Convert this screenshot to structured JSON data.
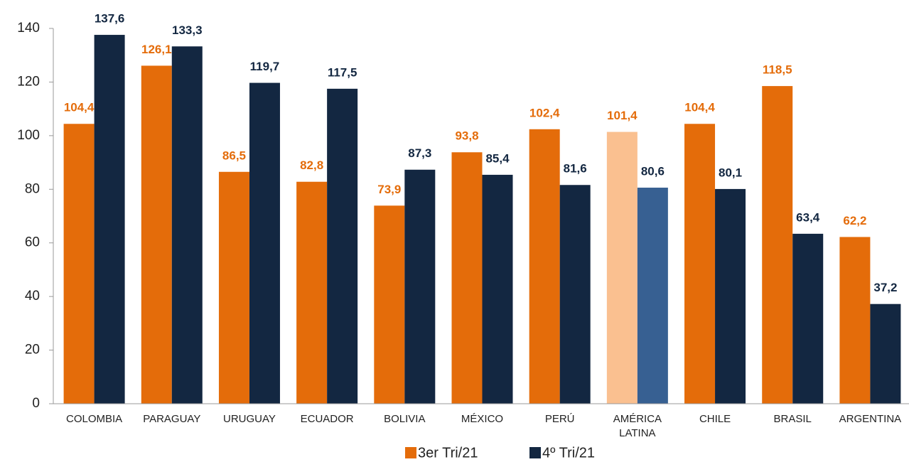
{
  "chart_data": {
    "type": "bar",
    "categories": [
      "COLOMBIA",
      "PARAGUAY",
      "URUGUAY",
      "ECUADOR",
      "BOLIVIA",
      "MÉXICO",
      "PERÚ",
      "AMÉRICA LATINA",
      "CHILE",
      "BRASIL",
      "ARGENTINA"
    ],
    "series": [
      {
        "name": "3er Tri/21",
        "color": "#e46c0a",
        "colors": [
          "#e46c0a",
          "#e46c0a",
          "#e46c0a",
          "#e46c0a",
          "#e46c0a",
          "#e46c0a",
          "#e46c0a",
          "#fac090",
          "#e46c0a",
          "#e46c0a",
          "#e46c0a"
        ],
        "values": [
          104.4,
          126.1,
          86.5,
          82.8,
          73.9,
          93.8,
          102.4,
          101.4,
          104.4,
          118.5,
          62.2
        ],
        "value_labels": [
          "104,4",
          "126,1",
          "86,5",
          "82,8",
          "73,9",
          "93,8",
          "102,4",
          "101,4",
          "104,4",
          "118,5",
          "62,2"
        ]
      },
      {
        "name": "4º Tri/21",
        "color": "#132741",
        "colors": [
          "#132741",
          "#132741",
          "#132741",
          "#132741",
          "#132741",
          "#132741",
          "#132741",
          "#376092",
          "#132741",
          "#132741",
          "#132741"
        ],
        "values": [
          137.6,
          133.3,
          119.7,
          117.5,
          87.3,
          85.4,
          81.6,
          80.6,
          80.1,
          63.4,
          37.2
        ],
        "value_labels": [
          "137,6",
          "133,3",
          "119,7",
          "117,5",
          "87,3",
          "85,4",
          "81,6",
          "80,6",
          "80,1",
          "63,4",
          "37,2"
        ]
      }
    ],
    "ylim": [
      0,
      140
    ],
    "yticks": [
      0,
      20,
      40,
      60,
      80,
      100,
      120,
      140
    ],
    "grid": false,
    "legend": "bottom"
  }
}
